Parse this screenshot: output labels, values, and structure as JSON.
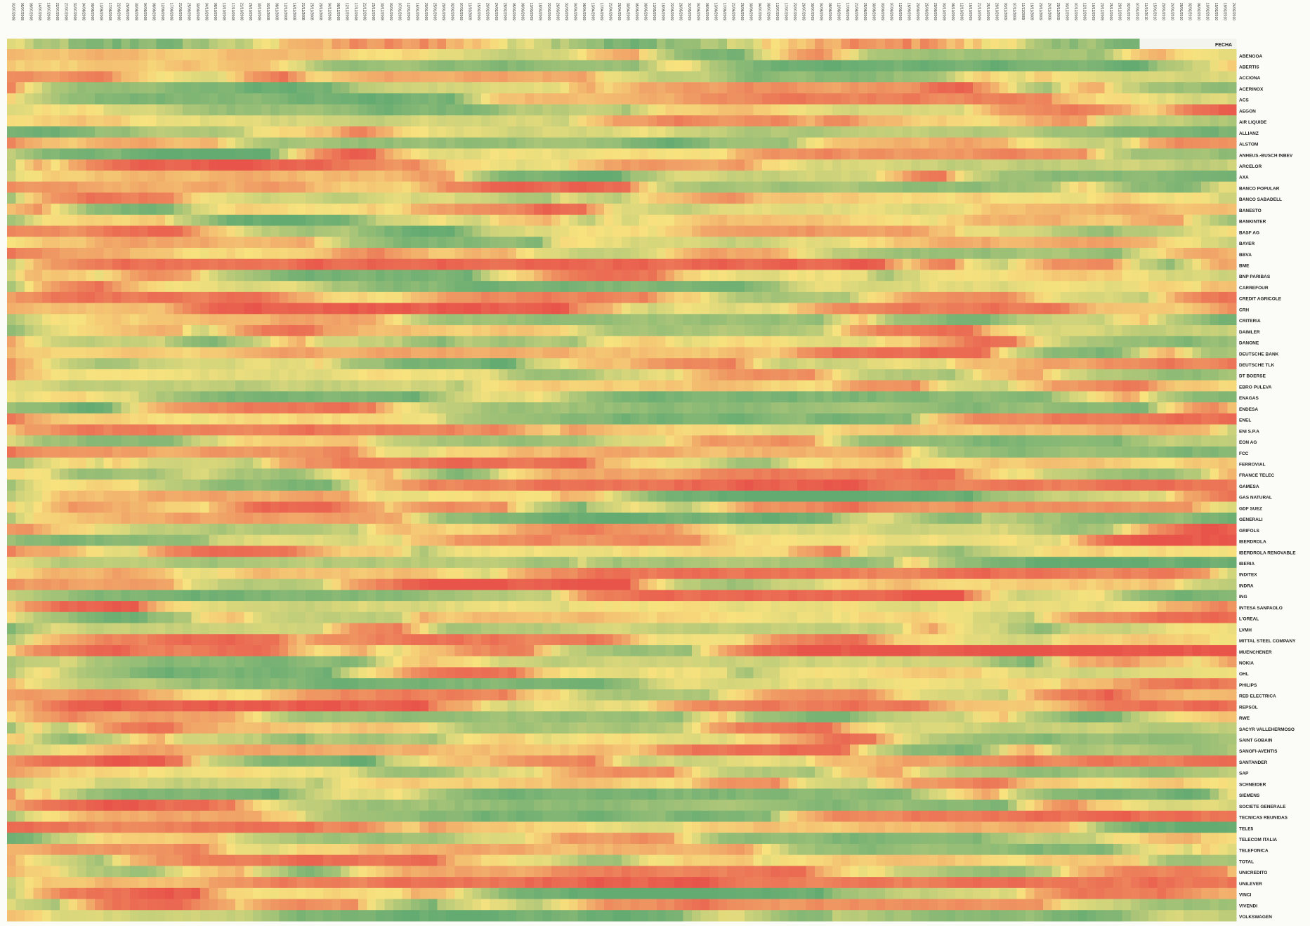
{
  "chart_data": {
    "type": "heatmap",
    "header_label": "FECHA",
    "x_labels_first": "01/07/2008",
    "x_labels_last": "24/02/2010",
    "num_dates": 140,
    "color_scale": {
      "low": "#e8544a",
      "mid": "#f7e27e",
      "high": "#64ab72"
    },
    "rows": [
      "ABENGOA",
      "ABERTIS",
      "ACCIONA",
      "ACERINOX",
      "ACS",
      "AEGON",
      "AIR LIQUIDE",
      "ALLIANZ",
      "ALSTOM",
      "ANHEUS.-BUSCH INBEV",
      "ARCELOR",
      "AXA",
      "BANCO POPULAR",
      "BANCO SABADELL",
      "BANESTO",
      "BANKINTER",
      "BASF AG",
      "BAYER",
      "BBVA",
      "BME",
      "BNP PARIBAS",
      "CARREFOUR",
      "CREDIT AGRICOLE",
      "CRH",
      "CRITERIA",
      "DAIMLER",
      "DANONE",
      "DEUTSCHE BANK",
      "DEUTSCHE TLK",
      "DT BOERSE",
      "EBRO PULEVA",
      "ENAGAS",
      "ENDESA",
      "ENEL",
      "ENI S.P.A",
      "EON AG",
      "FCC",
      "FERROVIAL",
      "FRANCE TELEC",
      "GAMESA",
      "GAS NATURAL",
      "GDF SUEZ",
      "GENERALI",
      "GRIFOLS",
      "IBERDROLA",
      "IBERDROLA RENOVABLE",
      "IBERIA",
      "INDITEX",
      "INDRA",
      "ING",
      "INTESA SANPAOLO",
      "L'OREAL",
      "LVMH",
      "MITTAL STEEL COMPANY",
      "MUENCHENER",
      "NOKIA",
      "OHL",
      "PHILIPS",
      "RED ELECTRICA",
      "REPSOL",
      "RWE",
      "SACYR VALLEHERMOSO",
      "SAINT GOBAIN",
      "SANOFI-AVENTIS",
      "SANTANDER",
      "SAP",
      "SCHNEIDER",
      "SIEMENS",
      "SOCIETE GENERALE",
      "TECNICAS REUNIDAS",
      "TELE5",
      "TELECOM ITALIA",
      "TELEFONICA",
      "TOTAL",
      "UNICREDITO",
      "UNILEVER",
      "VINCI",
      "VIVENDI",
      "VOLKSWAGEN"
    ]
  }
}
